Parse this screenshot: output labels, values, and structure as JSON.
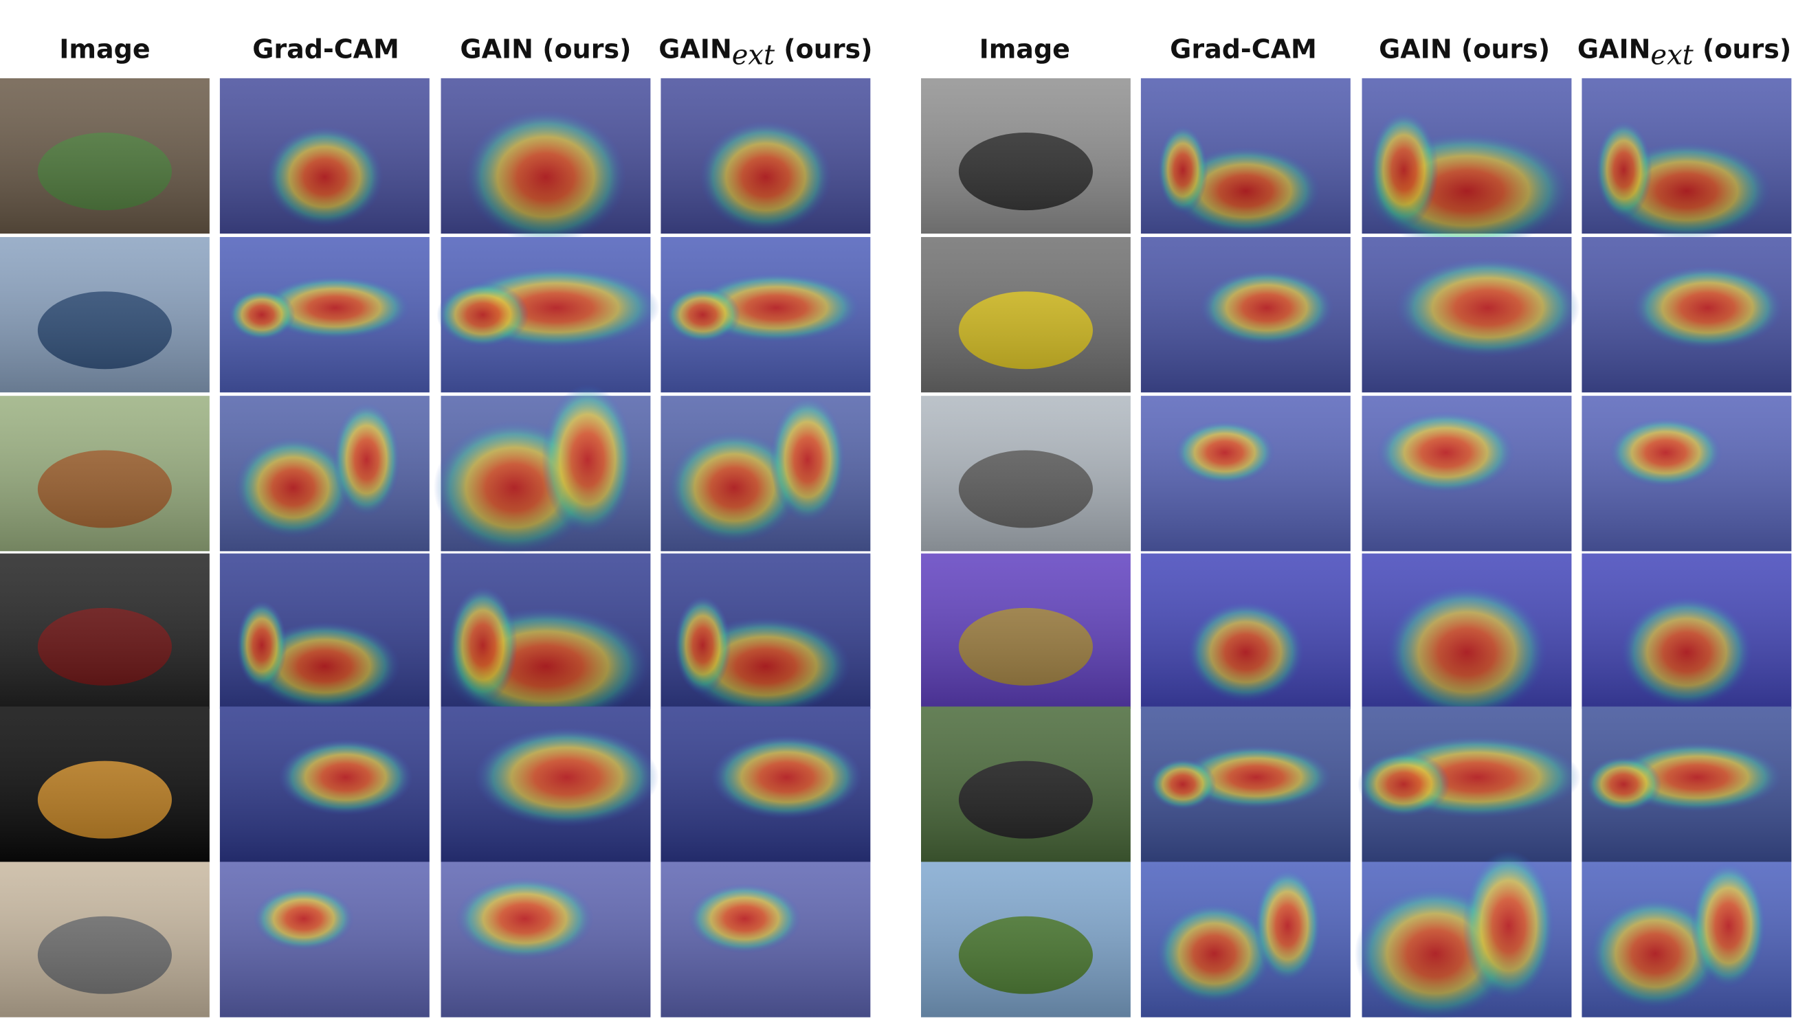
{
  "left_headers": [
    {
      "text": "Image"
    },
    {
      "text": "Grad-CAM"
    },
    {
      "text": "GAIN (ours)"
    },
    {
      "text": "GAIN",
      "subscript": "ext",
      "suffix": " (ours)"
    }
  ],
  "right_headers": [
    {
      "text": "Image"
    },
    {
      "text": "Grad-CAM"
    },
    {
      "text": "GAIN (ours)"
    },
    {
      "text": "GAIN",
      "subscript": "ext",
      "suffix": " (ours)"
    }
  ]
}
